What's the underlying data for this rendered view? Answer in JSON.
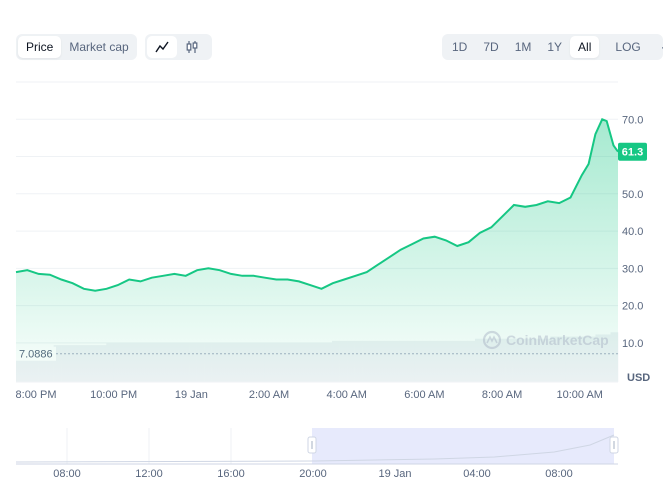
{
  "toolbar": {
    "metric_tabs": [
      {
        "label": "Price",
        "active": true
      },
      {
        "label": "Market cap",
        "active": false
      }
    ],
    "chart_types": [
      {
        "icon": "line-chart-icon",
        "active": true
      },
      {
        "icon": "candlestick-icon",
        "active": false
      }
    ],
    "ranges": [
      {
        "label": "1D",
        "active": false
      },
      {
        "label": "7D",
        "active": false
      },
      {
        "label": "1M",
        "active": false
      },
      {
        "label": "1Y",
        "active": false
      },
      {
        "label": "All",
        "active": true
      }
    ],
    "log_label": "LOG",
    "more_label": "···"
  },
  "watermark": "CoinMarketCap",
  "currency": "USD",
  "colors": {
    "line": "#16c784",
    "fill": "#16c784",
    "badge": "#16c784",
    "grid": "#eff2f5",
    "text": "#58667e",
    "navigator": "#e7eafc"
  },
  "chart_data": {
    "type": "area",
    "x_ticks": [
      "8:00 PM",
      "10:00 PM",
      "19 Jan",
      "2:00 AM",
      "4:00 AM",
      "6:00 AM",
      "8:00 AM",
      "10:00 AM"
    ],
    "y_ticks": [
      "10.0",
      "20.0",
      "30.0",
      "40.0",
      "50.0",
      "60.0",
      "70.0"
    ],
    "ylim": [
      -0.5,
      80
    ],
    "start_price_label": "7.0886",
    "start_price": 7.0886,
    "current_price_label": "61.3",
    "current_price": 61.3,
    "series": [
      {
        "points": [
          [
            0.0,
            29.0
          ],
          [
            0.25,
            29.5
          ],
          [
            0.5,
            28.5
          ],
          [
            0.75,
            28.3
          ],
          [
            1.0,
            27.0
          ],
          [
            1.25,
            26.0
          ],
          [
            1.5,
            24.5
          ],
          [
            1.75,
            24.0
          ],
          [
            2.0,
            24.5
          ],
          [
            2.25,
            25.5
          ],
          [
            2.5,
            27.0
          ],
          [
            2.75,
            26.5
          ],
          [
            3.0,
            27.5
          ],
          [
            3.25,
            28.0
          ],
          [
            3.5,
            28.5
          ],
          [
            3.75,
            28.0
          ],
          [
            4.0,
            29.5
          ],
          [
            4.25,
            30.0
          ],
          [
            4.5,
            29.5
          ],
          [
            4.75,
            28.5
          ],
          [
            5.0,
            28.0
          ],
          [
            5.25,
            28.0
          ],
          [
            5.5,
            27.5
          ],
          [
            5.75,
            27.0
          ],
          [
            6.0,
            27.0
          ],
          [
            6.25,
            26.5
          ],
          [
            6.5,
            25.5
          ],
          [
            6.75,
            24.5
          ],
          [
            7.0,
            26.0
          ],
          [
            7.25,
            27.0
          ],
          [
            7.5,
            28.0
          ],
          [
            7.75,
            29.0
          ],
          [
            8.0,
            31.0
          ],
          [
            8.25,
            33.0
          ],
          [
            8.5,
            35.0
          ],
          [
            8.75,
            36.5
          ],
          [
            9.0,
            38.0
          ],
          [
            9.25,
            38.5
          ],
          [
            9.5,
            37.5
          ],
          [
            9.75,
            36.0
          ],
          [
            10.0,
            37.0
          ],
          [
            10.25,
            39.5
          ],
          [
            10.5,
            41.0
          ],
          [
            10.75,
            44.0
          ],
          [
            11.0,
            47.0
          ],
          [
            11.25,
            46.5
          ],
          [
            11.5,
            47.0
          ],
          [
            11.75,
            48.0
          ],
          [
            12.0,
            47.5
          ],
          [
            12.25,
            49.0
          ],
          [
            12.5,
            55.0
          ],
          [
            12.65,
            58.0
          ],
          [
            12.8,
            66.0
          ],
          [
            12.95,
            70.0
          ],
          [
            13.05,
            69.5
          ],
          [
            13.2,
            63.0
          ],
          [
            13.3,
            61.3
          ]
        ]
      }
    ],
    "volume": [
      2,
      2,
      2.5,
      2.5,
      2.5,
      3,
      3,
      3,
      3,
      3,
      3,
      3,
      3.5,
      3.5,
      3.5,
      3.5,
      3.5,
      3.5,
      3.5,
      3.5,
      3.5,
      3.5,
      3.5,
      3.5,
      3.5,
      3.5,
      3.5,
      3.5,
      3.5,
      3.5,
      3.5,
      3.5,
      3.5,
      3.5,
      3.5,
      3.5,
      3.5,
      3.5,
      3.5,
      3.5,
      3.5,
      3.5,
      4,
      4,
      4,
      4,
      4,
      4,
      4,
      4,
      4,
      4,
      4,
      4,
      4,
      4,
      4,
      4,
      4,
      4,
      4,
      4.5,
      4.5,
      4.5,
      4.5,
      4.5,
      4.5,
      4.5,
      4.5,
      4.5,
      4.5,
      5,
      5,
      5,
      5,
      5,
      5,
      5.5,
      5.5,
      6
    ],
    "navigator_ticks": [
      "08:00",
      "12:00",
      "16:00",
      "20:00",
      "19 Jan",
      "04:00",
      "08:00"
    ]
  }
}
